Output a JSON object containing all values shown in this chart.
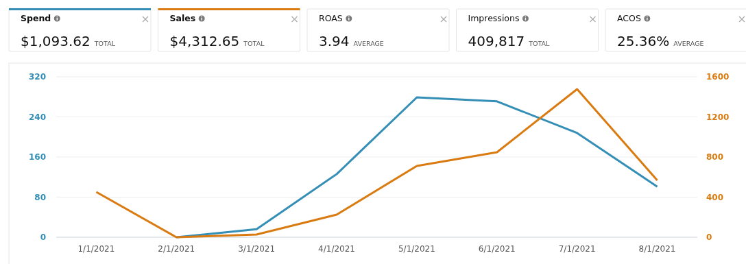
{
  "chart_data": [
    {
      "type": "other",
      "title": "Spend",
      "annotations": [
        "$1,093.62",
        "TOTAL"
      ]
    },
    {
      "type": "other",
      "title": "Sales",
      "annotations": [
        "$4,312.65",
        "TOTAL"
      ]
    },
    {
      "type": "other",
      "title": "ROAS",
      "annotations": [
        "3.94",
        "AVERAGE"
      ]
    },
    {
      "type": "other",
      "title": "Impressions",
      "annotations": [
        "409,817",
        "TOTAL"
      ]
    },
    {
      "type": "other",
      "title": "ACOS",
      "annotations": [
        "25.36%",
        "AVERAGE"
      ]
    },
    {
      "type": "line",
      "categories": [
        "1/1/2021",
        "2/1/2021",
        "3/1/2021",
        "4/1/2021",
        "5/1/2021",
        "6/1/2021",
        "7/1/2021",
        "8/1/2021"
      ],
      "series": [
        {
          "color": "#348eb5",
          "values": [
            null,
            0,
            16,
            126,
            279,
            271,
            208,
            101
          ]
        },
        {
          "color": "#d97b10",
          "axis": "y2",
          "values": [
            451,
            0,
            27,
            226,
            711,
            848,
            1477,
            568
          ]
        }
      ],
      "ylim": [
        0,
        320
      ],
      "yticks": [
        0,
        80,
        160,
        240,
        320
      ],
      "y2lim": [
        0,
        1600
      ],
      "y2ticks": [
        0,
        400,
        800,
        1200,
        1600
      ],
      "grid": "y",
      "marker": "none",
      "line_style": "solid"
    }
  ]
}
